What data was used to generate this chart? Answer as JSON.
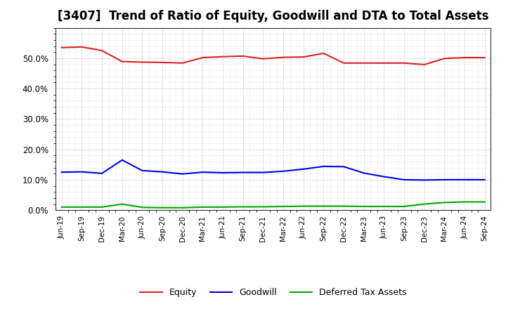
{
  "title": "[3407]  Trend of Ratio of Equity, Goodwill and DTA to Total Assets",
  "x_labels": [
    "Jun-19",
    "Sep-19",
    "Dec-19",
    "Mar-20",
    "Jun-20",
    "Sep-20",
    "Dec-20",
    "Mar-21",
    "Jun-21",
    "Sep-21",
    "Dec-21",
    "Mar-22",
    "Jun-22",
    "Sep-22",
    "Dec-22",
    "Mar-23",
    "Jun-23",
    "Sep-23",
    "Dec-23",
    "Mar-24",
    "Jun-24",
    "Sep-24"
  ],
  "equity": [
    0.535,
    0.537,
    0.525,
    0.489,
    0.487,
    0.486,
    0.484,
    0.502,
    0.505,
    0.507,
    0.498,
    0.503,
    0.504,
    0.516,
    0.484,
    0.484,
    0.484,
    0.484,
    0.479,
    0.499,
    0.502,
    0.502
  ],
  "goodwill": [
    0.125,
    0.126,
    0.121,
    0.165,
    0.13,
    0.126,
    0.119,
    0.125,
    0.123,
    0.124,
    0.124,
    0.128,
    0.135,
    0.144,
    0.143,
    0.122,
    0.11,
    0.1,
    0.099,
    0.1,
    0.1,
    0.1
  ],
  "dta": [
    0.01,
    0.01,
    0.01,
    0.02,
    0.009,
    0.008,
    0.008,
    0.01,
    0.01,
    0.011,
    0.011,
    0.012,
    0.013,
    0.013,
    0.013,
    0.012,
    0.012,
    0.012,
    0.02,
    0.025,
    0.027,
    0.027
  ],
  "equity_color": "#dd2222",
  "goodwill_color": "#0000ee",
  "dta_color": "#00aa00",
  "bg_color": "#ffffff",
  "plot_bg_color": "#ffffff",
  "grid_color": "#999999",
  "ylim": [
    0.0,
    0.6
  ],
  "yticks": [
    0.0,
    0.1,
    0.2,
    0.3,
    0.4,
    0.5
  ],
  "legend_labels": [
    "Equity",
    "Goodwill",
    "Deferred Tax Assets"
  ],
  "title_fontsize": 12
}
